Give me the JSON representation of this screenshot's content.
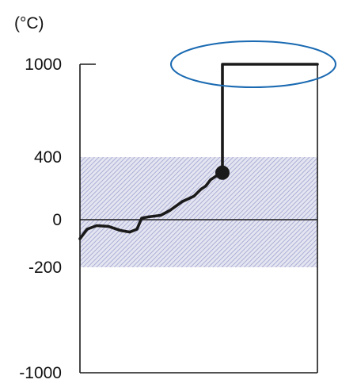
{
  "chart_data": {
    "type": "line",
    "y_unit_label": "(°C)",
    "y_ticks": [
      {
        "value": 1000,
        "label": "1000"
      },
      {
        "value": 400,
        "label": "400"
      },
      {
        "value": 0,
        "label": "0"
      },
      {
        "value": -200,
        "label": "-200"
      },
      {
        "value": -1000,
        "label": "-1000"
      }
    ],
    "ylim": [
      -1000,
      1000
    ],
    "y_scale": "piecewise",
    "xlim": [
      0,
      100
    ],
    "grid": false,
    "shaded_band": {
      "y_from": -200,
      "y_to": 400,
      "color": "#b6b9db",
      "pattern": "diagonal-hatch"
    },
    "zero_line": true,
    "series": [
      {
        "color": "#1a1a1a",
        "points": [
          {
            "x": 0,
            "y": -80
          },
          {
            "x": 3,
            "y": -40
          },
          {
            "x": 7,
            "y": -25
          },
          {
            "x": 12,
            "y": -28
          },
          {
            "x": 17,
            "y": -45
          },
          {
            "x": 21,
            "y": -52
          },
          {
            "x": 24,
            "y": -40
          },
          {
            "x": 26,
            "y": 10
          },
          {
            "x": 29,
            "y": 18
          },
          {
            "x": 34,
            "y": 28
          },
          {
            "x": 38,
            "y": 60
          },
          {
            "x": 43,
            "y": 115
          },
          {
            "x": 48,
            "y": 150
          },
          {
            "x": 51,
            "y": 195
          },
          {
            "x": 53,
            "y": 215
          },
          {
            "x": 55,
            "y": 255
          },
          {
            "x": 58,
            "y": 285
          },
          {
            "x": 60,
            "y": 300
          },
          {
            "x": 60,
            "y": 1000
          },
          {
            "x": 100,
            "y": 1000
          }
        ],
        "end_marker": {
          "x": 60,
          "y": 300
        }
      }
    ],
    "highlight_ellipse": {
      "center_x": 73,
      "center_y": 1000,
      "color": "#1a6ab2"
    }
  }
}
